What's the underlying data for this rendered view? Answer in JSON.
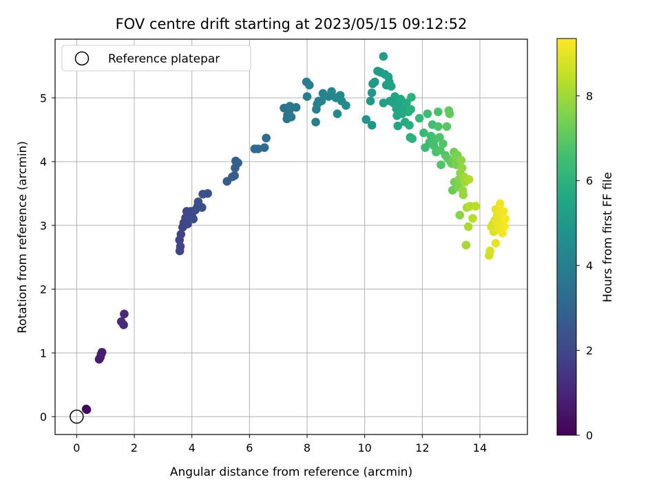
{
  "chart_data": {
    "type": "scatter",
    "title": "FOV centre drift starting at 2023/05/15 09:12:52",
    "xlabel": "Angular distance from reference (arcmin)",
    "ylabel": "Rotation from reference (arcmin)",
    "xlim": [
      -0.75,
      15.65
    ],
    "ylim": [
      -0.28,
      5.92
    ],
    "xticks": [
      0,
      2,
      4,
      6,
      8,
      10,
      12,
      14
    ],
    "yticks": [
      0,
      1,
      2,
      3,
      4,
      5
    ],
    "grid": true,
    "legend": {
      "placement": "top-left",
      "entries": [
        "Reference platepar"
      ]
    },
    "reference": {
      "x": 0,
      "y": 0
    },
    "colorbar": {
      "label": "Hours from first FF file",
      "range": [
        0,
        9.35
      ],
      "ticks": [
        0,
        2,
        4,
        6,
        8
      ],
      "colormap": "viridis",
      "colors": [
        "#440154",
        "#482475",
        "#414487",
        "#355f8d",
        "#2a788e",
        "#21908d",
        "#22a884",
        "#42be71",
        "#7ad151",
        "#bddf26",
        "#fde725"
      ]
    },
    "points": [
      {
        "x": 0.35,
        "y": 0.11,
        "c": 0.15
      },
      {
        "x": 0.33,
        "y": 0.12,
        "c": 0.2
      },
      {
        "x": 0.78,
        "y": 0.9,
        "c": 0.7
      },
      {
        "x": 0.82,
        "y": 0.93,
        "c": 0.72
      },
      {
        "x": 0.85,
        "y": 0.98,
        "c": 0.75
      },
      {
        "x": 0.88,
        "y": 1.01,
        "c": 0.78
      },
      {
        "x": 1.55,
        "y": 1.49,
        "c": 1.1
      },
      {
        "x": 1.63,
        "y": 1.44,
        "c": 1.12
      },
      {
        "x": 1.65,
        "y": 1.61,
        "c": 1.15
      },
      {
        "x": 3.58,
        "y": 2.6,
        "c": 1.85
      },
      {
        "x": 3.6,
        "y": 2.67,
        "c": 1.87
      },
      {
        "x": 3.57,
        "y": 2.77,
        "c": 1.88
      },
      {
        "x": 3.62,
        "y": 2.86,
        "c": 1.9
      },
      {
        "x": 3.68,
        "y": 2.97,
        "c": 1.92
      },
      {
        "x": 3.72,
        "y": 3.04,
        "c": 1.95
      },
      {
        "x": 3.78,
        "y": 3.12,
        "c": 1.97
      },
      {
        "x": 3.82,
        "y": 3.22,
        "c": 2.0
      },
      {
        "x": 3.85,
        "y": 3.02,
        "c": 2.02
      },
      {
        "x": 3.9,
        "y": 3.14,
        "c": 2.05
      },
      {
        "x": 3.95,
        "y": 3.22,
        "c": 2.07
      },
      {
        "x": 4.0,
        "y": 3.15,
        "c": 2.1
      },
      {
        "x": 4.05,
        "y": 3.1,
        "c": 2.12
      },
      {
        "x": 4.12,
        "y": 3.24,
        "c": 2.15
      },
      {
        "x": 4.2,
        "y": 3.3,
        "c": 2.18
      },
      {
        "x": 4.22,
        "y": 3.37,
        "c": 2.2
      },
      {
        "x": 4.35,
        "y": 3.28,
        "c": 2.25
      },
      {
        "x": 4.38,
        "y": 3.49,
        "c": 2.28
      },
      {
        "x": 4.55,
        "y": 3.5,
        "c": 2.32
      },
      {
        "x": 5.22,
        "y": 3.69,
        "c": 2.7
      },
      {
        "x": 5.4,
        "y": 3.76,
        "c": 2.75
      },
      {
        "x": 5.48,
        "y": 3.78,
        "c": 2.78
      },
      {
        "x": 5.5,
        "y": 3.9,
        "c": 2.8
      },
      {
        "x": 5.52,
        "y": 4.01,
        "c": 2.82
      },
      {
        "x": 5.6,
        "y": 3.98,
        "c": 2.85
      },
      {
        "x": 6.18,
        "y": 4.2,
        "c": 3.2
      },
      {
        "x": 6.3,
        "y": 4.2,
        "c": 3.22
      },
      {
        "x": 6.52,
        "y": 4.22,
        "c": 3.25
      },
      {
        "x": 6.58,
        "y": 4.37,
        "c": 3.28
      },
      {
        "x": 7.2,
        "y": 4.84,
        "c": 3.6
      },
      {
        "x": 7.3,
        "y": 4.67,
        "c": 3.62
      },
      {
        "x": 7.32,
        "y": 4.73,
        "c": 3.65
      },
      {
        "x": 7.38,
        "y": 4.8,
        "c": 3.68
      },
      {
        "x": 7.4,
        "y": 4.87,
        "c": 3.7
      },
      {
        "x": 7.45,
        "y": 4.7,
        "c": 3.72
      },
      {
        "x": 7.62,
        "y": 4.85,
        "c": 3.75
      },
      {
        "x": 7.98,
        "y": 5.25,
        "c": 3.9
      },
      {
        "x": 8.08,
        "y": 5.2,
        "c": 3.92
      },
      {
        "x": 8.0,
        "y": 5.02,
        "c": 3.95
      },
      {
        "x": 8.3,
        "y": 4.62,
        "c": 4.0
      },
      {
        "x": 8.32,
        "y": 4.82,
        "c": 4.05
      },
      {
        "x": 8.35,
        "y": 4.9,
        "c": 4.08
      },
      {
        "x": 8.4,
        "y": 4.95,
        "c": 4.1
      },
      {
        "x": 8.55,
        "y": 5.07,
        "c": 4.15
      },
      {
        "x": 8.5,
        "y": 4.95,
        "c": 4.18
      },
      {
        "x": 8.75,
        "y": 5.02,
        "c": 4.25
      },
      {
        "x": 8.85,
        "y": 5.1,
        "c": 4.3
      },
      {
        "x": 9.0,
        "y": 5.0,
        "c": 4.35
      },
      {
        "x": 9.05,
        "y": 4.75,
        "c": 4.38
      },
      {
        "x": 9.15,
        "y": 5.04,
        "c": 4.4
      },
      {
        "x": 9.2,
        "y": 4.95,
        "c": 4.45
      },
      {
        "x": 9.35,
        "y": 4.88,
        "c": 4.5
      },
      {
        "x": 10.05,
        "y": 4.66,
        "c": 4.85
      },
      {
        "x": 10.25,
        "y": 4.57,
        "c": 4.9
      },
      {
        "x": 10.2,
        "y": 4.95,
        "c": 4.95
      },
      {
        "x": 10.25,
        "y": 5.08,
        "c": 5.0
      },
      {
        "x": 10.28,
        "y": 5.22,
        "c": 5.02
      },
      {
        "x": 10.35,
        "y": 5.25,
        "c": 5.05
      },
      {
        "x": 10.45,
        "y": 5.42,
        "c": 5.1
      },
      {
        "x": 10.55,
        "y": 5.4,
        "c": 5.12
      },
      {
        "x": 10.65,
        "y": 5.65,
        "c": 5.15
      },
      {
        "x": 10.7,
        "y": 5.37,
        "c": 5.2
      },
      {
        "x": 10.75,
        "y": 5.2,
        "c": 5.22
      },
      {
        "x": 10.65,
        "y": 4.92,
        "c": 5.25
      },
      {
        "x": 10.82,
        "y": 5.33,
        "c": 5.28
      },
      {
        "x": 10.85,
        "y": 5.25,
        "c": 5.3
      },
      {
        "x": 10.88,
        "y": 4.95,
        "c": 5.33
      },
      {
        "x": 10.92,
        "y": 5.18,
        "c": 5.35
      },
      {
        "x": 11.0,
        "y": 4.92,
        "c": 5.4
      },
      {
        "x": 11.05,
        "y": 5.02,
        "c": 5.42
      },
      {
        "x": 11.1,
        "y": 4.83,
        "c": 5.45
      },
      {
        "x": 11.12,
        "y": 4.72,
        "c": 5.5
      },
      {
        "x": 11.15,
        "y": 4.56,
        "c": 5.52
      },
      {
        "x": 11.18,
        "y": 4.88,
        "c": 5.55
      },
      {
        "x": 11.25,
        "y": 4.98,
        "c": 5.58
      },
      {
        "x": 11.3,
        "y": 4.75,
        "c": 5.6
      },
      {
        "x": 11.35,
        "y": 4.82,
        "c": 5.65
      },
      {
        "x": 11.4,
        "y": 4.62,
        "c": 5.7
      },
      {
        "x": 11.45,
        "y": 4.92,
        "c": 5.72
      },
      {
        "x": 11.52,
        "y": 4.78,
        "c": 5.75
      },
      {
        "x": 11.55,
        "y": 4.57,
        "c": 5.8
      },
      {
        "x": 11.58,
        "y": 4.38,
        "c": 5.85
      },
      {
        "x": 11.6,
        "y": 4.82,
        "c": 5.9
      },
      {
        "x": 11.65,
        "y": 4.36,
        "c": 5.95
      },
      {
        "x": 11.62,
        "y": 5.01,
        "c": 5.92
      },
      {
        "x": 11.9,
        "y": 4.68,
        "c": 6.2
      },
      {
        "x": 12.05,
        "y": 4.45,
        "c": 6.3
      },
      {
        "x": 12.1,
        "y": 4.22,
        "c": 6.35
      },
      {
        "x": 12.18,
        "y": 4.75,
        "c": 6.4
      },
      {
        "x": 12.25,
        "y": 4.3,
        "c": 6.45
      },
      {
        "x": 12.3,
        "y": 4.4,
        "c": 6.5
      },
      {
        "x": 12.35,
        "y": 4.58,
        "c": 6.55
      },
      {
        "x": 12.4,
        "y": 4.25,
        "c": 6.6
      },
      {
        "x": 12.45,
        "y": 4.35,
        "c": 6.62
      },
      {
        "x": 12.48,
        "y": 4.15,
        "c": 6.65
      },
      {
        "x": 12.55,
        "y": 4.78,
        "c": 6.7
      },
      {
        "x": 12.55,
        "y": 4.55,
        "c": 6.72
      },
      {
        "x": 12.6,
        "y": 4.38,
        "c": 6.75
      },
      {
        "x": 12.62,
        "y": 4.18,
        "c": 6.78
      },
      {
        "x": 12.65,
        "y": 3.95,
        "c": 6.8
      },
      {
        "x": 12.72,
        "y": 4.28,
        "c": 6.85
      },
      {
        "x": 12.8,
        "y": 4.1,
        "c": 6.9
      },
      {
        "x": 12.85,
        "y": 4.55,
        "c": 6.95
      },
      {
        "x": 12.88,
        "y": 4.05,
        "c": 7.0
      },
      {
        "x": 12.92,
        "y": 4.8,
        "c": 7.05
      },
      {
        "x": 12.95,
        "y": 4.75,
        "c": 7.1
      },
      {
        "x": 12.98,
        "y": 4.0,
        "c": 7.15
      },
      {
        "x": 13.02,
        "y": 3.97,
        "c": 7.2
      },
      {
        "x": 13.05,
        "y": 3.55,
        "c": 7.25
      },
      {
        "x": 13.1,
        "y": 4.15,
        "c": 7.3
      },
      {
        "x": 13.12,
        "y": 3.68,
        "c": 7.35
      },
      {
        "x": 13.15,
        "y": 4.05,
        "c": 7.4
      },
      {
        "x": 13.18,
        "y": 3.95,
        "c": 7.45
      },
      {
        "x": 13.22,
        "y": 4.1,
        "c": 7.5
      },
      {
        "x": 13.25,
        "y": 3.6,
        "c": 7.55
      },
      {
        "x": 13.28,
        "y": 3.72,
        "c": 7.6
      },
      {
        "x": 13.3,
        "y": 3.16,
        "c": 7.65
      },
      {
        "x": 13.32,
        "y": 3.82,
        "c": 7.7
      },
      {
        "x": 13.35,
        "y": 4.02,
        "c": 7.75
      },
      {
        "x": 13.38,
        "y": 3.9,
        "c": 7.8
      },
      {
        "x": 13.4,
        "y": 3.55,
        "c": 7.85
      },
      {
        "x": 13.42,
        "y": 3.48,
        "c": 7.9
      },
      {
        "x": 13.45,
        "y": 3.76,
        "c": 7.95
      },
      {
        "x": 13.48,
        "y": 3.68,
        "c": 8.0
      },
      {
        "x": 13.52,
        "y": 2.69,
        "c": 8.05
      },
      {
        "x": 13.55,
        "y": 3.28,
        "c": 8.1
      },
      {
        "x": 13.6,
        "y": 2.98,
        "c": 8.15
      },
      {
        "x": 13.62,
        "y": 3.72,
        "c": 8.2
      },
      {
        "x": 13.65,
        "y": 3.3,
        "c": 8.25
      },
      {
        "x": 13.75,
        "y": 3.11,
        "c": 8.3
      },
      {
        "x": 13.85,
        "y": 3.3,
        "c": 8.35
      },
      {
        "x": 14.32,
        "y": 2.53,
        "c": 8.7
      },
      {
        "x": 14.35,
        "y": 2.6,
        "c": 8.72
      },
      {
        "x": 14.4,
        "y": 2.98,
        "c": 8.75
      },
      {
        "x": 14.45,
        "y": 3.02,
        "c": 8.8
      },
      {
        "x": 14.48,
        "y": 2.9,
        "c": 8.85
      },
      {
        "x": 14.52,
        "y": 3.08,
        "c": 8.9
      },
      {
        "x": 14.55,
        "y": 3.25,
        "c": 8.95
      },
      {
        "x": 14.55,
        "y": 2.72,
        "c": 8.98
      },
      {
        "x": 14.6,
        "y": 3.15,
        "c": 9.0
      },
      {
        "x": 14.62,
        "y": 3.02,
        "c": 9.05
      },
      {
        "x": 14.65,
        "y": 2.95,
        "c": 9.08
      },
      {
        "x": 14.68,
        "y": 3.2,
        "c": 9.1
      },
      {
        "x": 14.7,
        "y": 3.34,
        "c": 9.12
      },
      {
        "x": 14.75,
        "y": 3.05,
        "c": 9.15
      },
      {
        "x": 14.78,
        "y": 2.88,
        "c": 9.18
      },
      {
        "x": 14.82,
        "y": 3.22,
        "c": 9.2
      },
      {
        "x": 14.85,
        "y": 2.98,
        "c": 9.25
      },
      {
        "x": 14.88,
        "y": 3.1,
        "c": 9.3
      }
    ]
  }
}
